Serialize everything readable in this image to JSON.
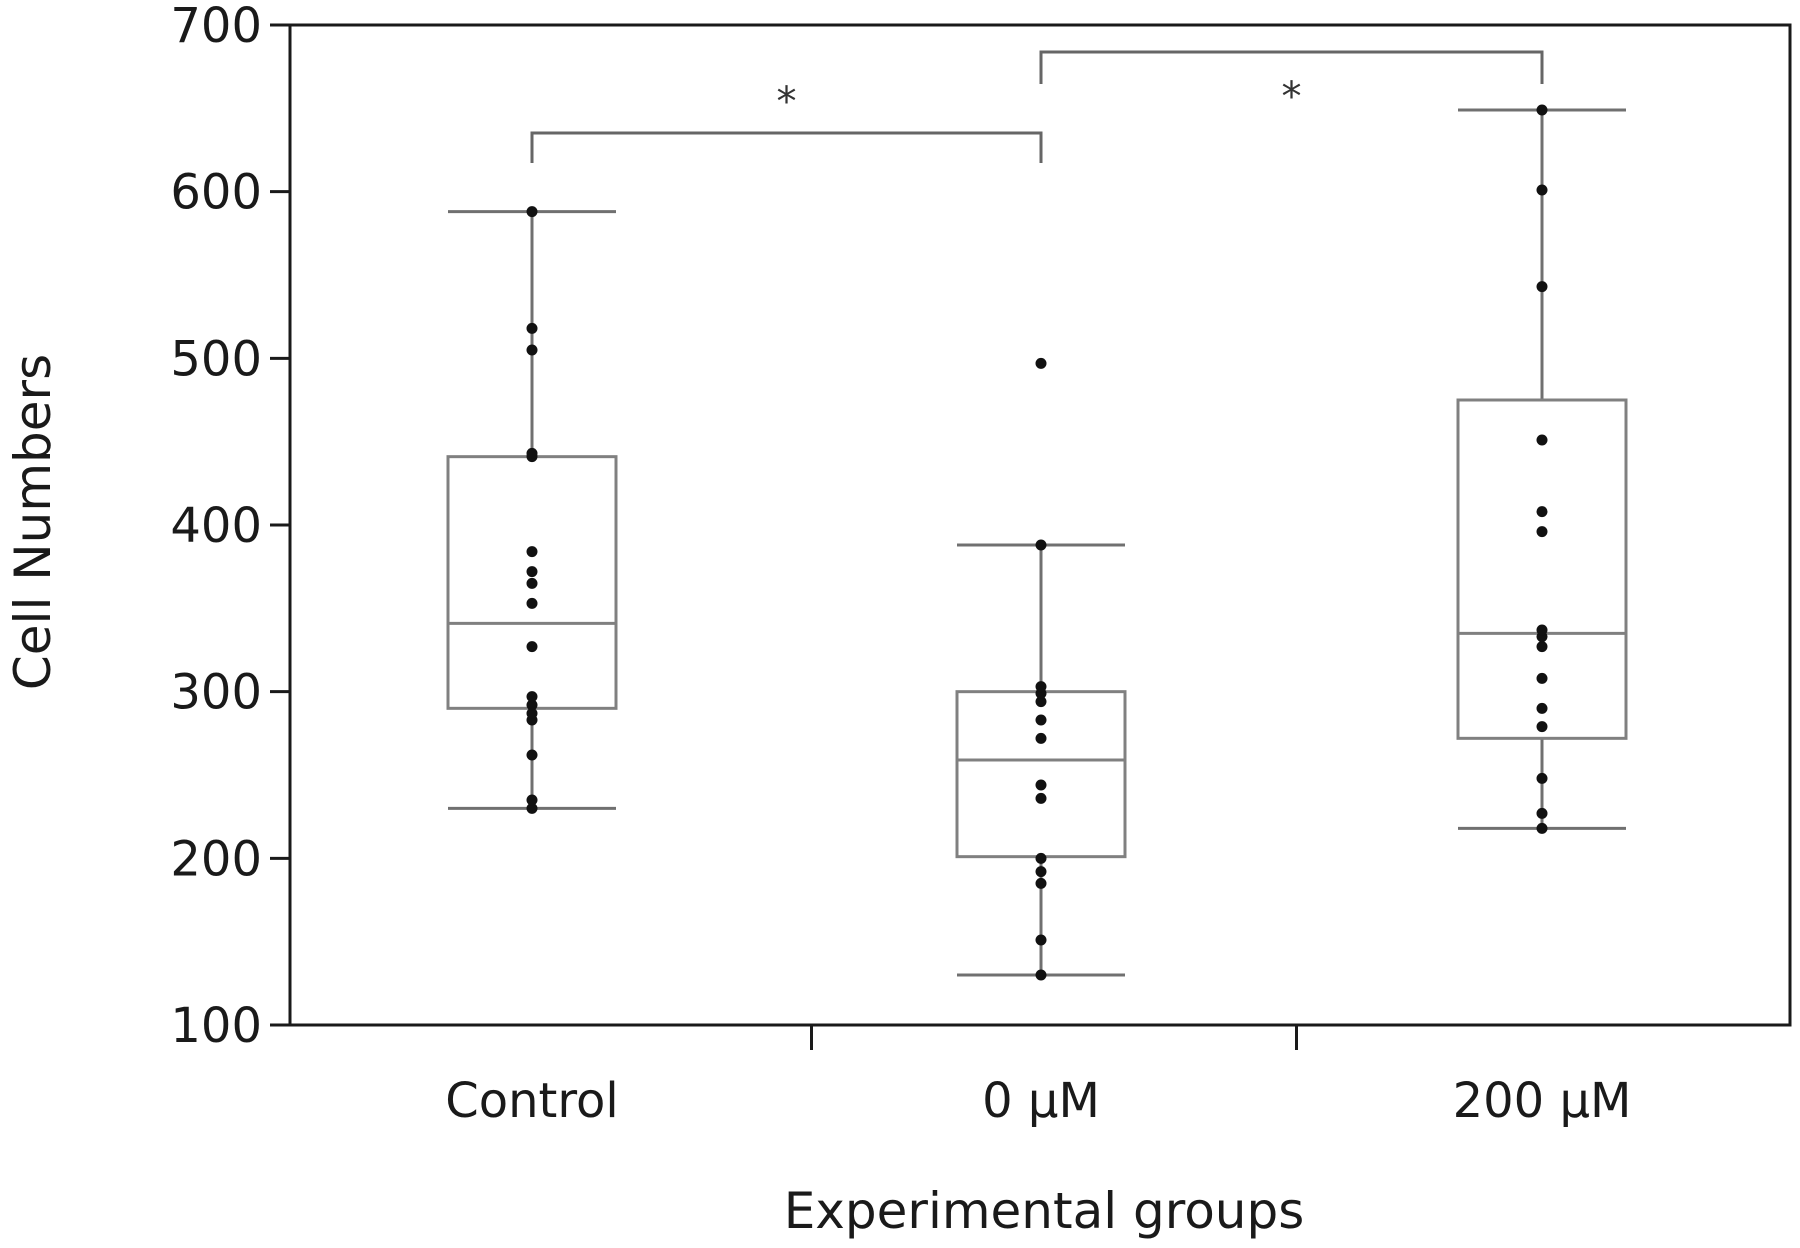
{
  "chart_data": {
    "type": "boxplot",
    "title": "",
    "xlabel": "Experimental groups",
    "ylabel": "Cell Numbers",
    "ylim": [
      100,
      700
    ],
    "yticks": [
      100,
      200,
      300,
      400,
      500,
      600,
      700
    ],
    "grid": false,
    "categories": [
      "Control",
      "0 µM",
      "200 µM"
    ],
    "boxes": [
      {
        "category": "Control",
        "whisker_low": 230,
        "q1": 290,
        "median": 341,
        "q3": 441,
        "whisker_high": 588,
        "points": [
          230,
          235,
          262,
          283,
          287,
          292,
          297,
          327,
          353,
          365,
          372,
          384,
          441,
          443,
          505,
          518,
          588
        ]
      },
      {
        "category": "0 µM",
        "whisker_low": 130,
        "q1": 201,
        "median": 259,
        "q3": 300,
        "whisker_high": 388,
        "points": [
          130,
          151,
          185,
          192,
          200,
          236,
          244,
          272,
          283,
          294,
          299,
          303,
          388,
          497
        ]
      },
      {
        "category": "200 µM",
        "whisker_low": 218,
        "q1": 272,
        "median": 335,
        "q3": 475,
        "whisker_high": 649,
        "points": [
          218,
          227,
          248,
          279,
          290,
          308,
          327,
          333,
          337,
          396,
          408,
          451,
          543,
          601,
          649
        ]
      }
    ],
    "significance": [
      {
        "from": 0,
        "to": 1,
        "label": "*"
      },
      {
        "from": 1,
        "to": 2,
        "label": "*"
      }
    ],
    "colors": {
      "box_stroke": "#808080",
      "whisker_stroke": "#707070",
      "point_fill": "#111111",
      "axis_stroke": "#1a1a1a",
      "bracket_stroke": "#666666"
    }
  }
}
